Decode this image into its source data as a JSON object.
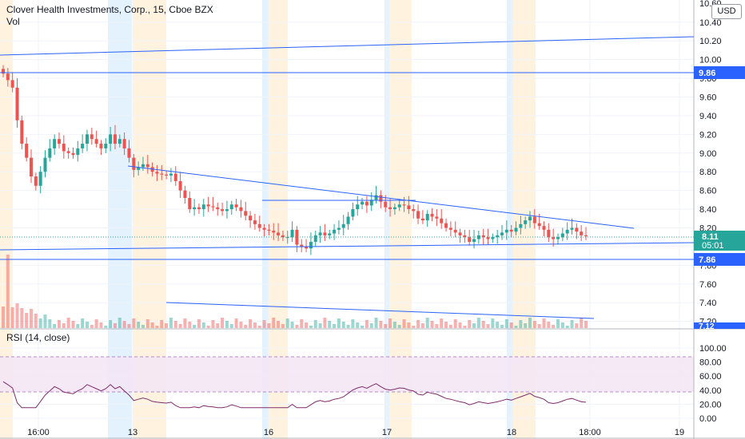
{
  "header": {
    "symbol": "Clover Health Investments, Corp., 15, Cboe BZX",
    "vol": "Vol",
    "currency": "USD"
  },
  "rsi_header": "RSI (14, close)",
  "colors": {
    "up": "#26a69a",
    "down": "#ef5350",
    "trendline": "#2962ff",
    "rsi_line": "#7e2c6b",
    "rsi_band": "#e8d9f7",
    "last_price": "#26a69a",
    "premarket": "#e3f2fd",
    "afterhours": "#fff3e0"
  },
  "price_labels": {
    "last_price": "8.11",
    "countdown": "05:01",
    "line_a": "9.86",
    "line_b": "7.86",
    "bottom": "7.12",
    "top": "10.60"
  },
  "chart_data": [
    {
      "type": "candlestick",
      "title": "Clover Health Investments, Corp., 15, Cboe BZX",
      "y_ticks": [
        "10.40",
        "10.20",
        "10.00",
        "9.80",
        "9.60",
        "9.40",
        "9.20",
        "9.00",
        "8.80",
        "8.60",
        "8.40",
        "8.20",
        "8.00",
        "7.80",
        "7.60",
        "7.40",
        "7.20"
      ],
      "ylim": [
        7.12,
        10.62
      ],
      "x_ticks": [
        "16:00",
        "13",
        "16",
        "17",
        "18",
        "18:00",
        "19"
      ],
      "last_price": 8.11,
      "horizontal_lines": [
        9.86,
        7.86
      ],
      "close": [
        9.85,
        9.78,
        9.7,
        9.35,
        9.1,
        8.95,
        8.75,
        8.65,
        8.8,
        8.95,
        9.05,
        9.15,
        9.1,
        9.02,
        9.0,
        8.98,
        9.05,
        9.1,
        9.2,
        9.15,
        9.1,
        9.05,
        9.1,
        9.2,
        9.1,
        9.15,
        9.05,
        8.95,
        8.82,
        8.85,
        8.88,
        8.85,
        8.8,
        8.78,
        8.77,
        8.76,
        8.78,
        8.7,
        8.6,
        8.52,
        8.4,
        8.42,
        8.4,
        8.45,
        8.43,
        8.42,
        8.4,
        8.38,
        8.4,
        8.45,
        8.42,
        8.38,
        8.33,
        8.28,
        8.24,
        8.2,
        8.18,
        8.17,
        8.15,
        8.12,
        8.1,
        8.1,
        8.18,
        8.02,
        8.0,
        7.98,
        8.05,
        8.12,
        8.15,
        8.12,
        8.14,
        8.18,
        8.2,
        8.24,
        8.32,
        8.4,
        8.45,
        8.48,
        8.44,
        8.5,
        8.55,
        8.48,
        8.42,
        8.4,
        8.42,
        8.45,
        8.44,
        8.4,
        8.38,
        8.3,
        8.28,
        8.35,
        8.32,
        8.3,
        8.25,
        8.2,
        8.18,
        8.15,
        8.12,
        8.1,
        8.05,
        8.08,
        8.12,
        8.1,
        8.08,
        8.1,
        8.12,
        8.15,
        8.18,
        8.16,
        8.2,
        8.24,
        8.28,
        8.32,
        8.25,
        8.22,
        8.18,
        8.1,
        8.08,
        8.1,
        8.14,
        8.18,
        8.2,
        8.16,
        8.12,
        8.11
      ],
      "rsi": {
        "label": "RSI (14, close)",
        "ylim": [
          0,
          100
        ],
        "ticks": [
          "100.00",
          "80.00",
          "60.00",
          "40.00",
          "20.00",
          "0.00"
        ],
        "bands": [
          70,
          30
        ]
      },
      "volume_pane": {
        "label": "Vol"
      }
    }
  ]
}
